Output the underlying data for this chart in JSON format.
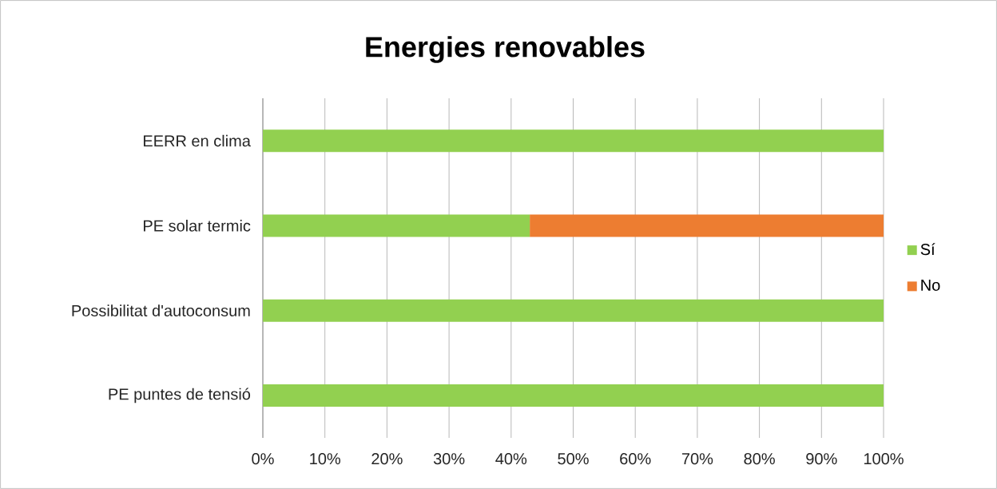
{
  "chart_data": {
    "type": "bar",
    "orientation": "horizontal",
    "stacked": true,
    "title": "Energies renovables",
    "categories": [
      "EERR en clima",
      "PE solar termic",
      "Possibilitat d'autoconsum",
      "PE puntes de tensió"
    ],
    "series": [
      {
        "name": "Sí",
        "color": "#92d050",
        "values": [
          100,
          43,
          100,
          100
        ]
      },
      {
        "name": "No",
        "color": "#ed7d31",
        "values": [
          0,
          57,
          0,
          0
        ]
      }
    ],
    "xlim": [
      0,
      100
    ],
    "xticks": [
      {
        "value": 0,
        "label": "0%"
      },
      {
        "value": 10,
        "label": "10%"
      },
      {
        "value": 20,
        "label": "20%"
      },
      {
        "value": 30,
        "label": "30%"
      },
      {
        "value": 40,
        "label": "40%"
      },
      {
        "value": 50,
        "label": "50%"
      },
      {
        "value": 60,
        "label": "60%"
      },
      {
        "value": 70,
        "label": "70%"
      },
      {
        "value": 80,
        "label": "80%"
      },
      {
        "value": 90,
        "label": "90%"
      },
      {
        "value": 100,
        "label": "100%"
      }
    ],
    "grid": "x",
    "legend": "right"
  }
}
